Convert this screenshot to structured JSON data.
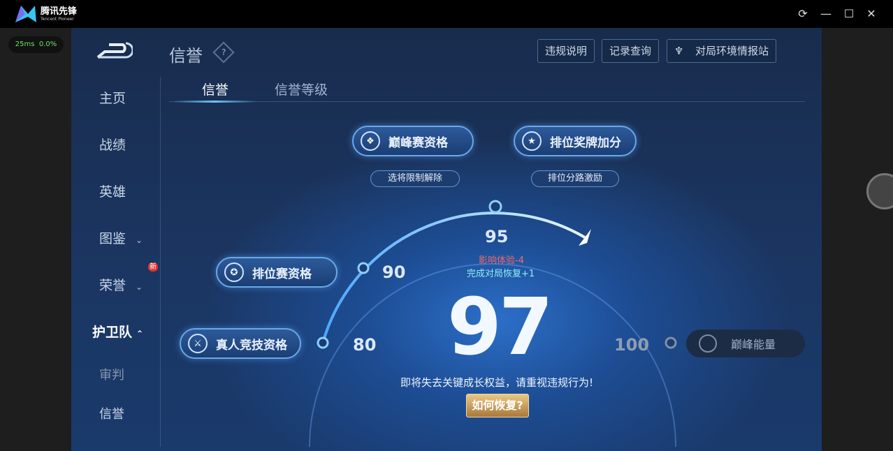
{
  "window": {
    "app_name": "腾讯先锋",
    "app_subtitle": "Tencent Pioneer",
    "controls": [
      "refresh-icon",
      "minimize-icon",
      "maximize-icon",
      "close-icon"
    ]
  },
  "ping": {
    "latency": "25ms",
    "loss": "0.0%"
  },
  "header": {
    "title": "信誉",
    "buttons": [
      "违规说明",
      "记录查询",
      "对局环境情报站"
    ]
  },
  "sidebar": {
    "items": [
      {
        "label": "主页"
      },
      {
        "label": "战绩"
      },
      {
        "label": "英雄"
      },
      {
        "label": "图鉴"
      },
      {
        "label": "荣誉",
        "badge": "新"
      },
      {
        "label": "护卫队",
        "active": true
      },
      {
        "label": "审判"
      },
      {
        "label": "信誉"
      }
    ]
  },
  "tabs": [
    {
      "label": "信誉",
      "active": true
    },
    {
      "label": "信誉等级"
    }
  ],
  "privileges": {
    "peak": {
      "label": "巅峰赛资格",
      "sub": "选将限制解除"
    },
    "rank_bonus": {
      "label": "排位奖牌加分",
      "sub": "排位分路激励"
    },
    "ranked": {
      "label": "排位赛资格"
    },
    "human": {
      "label": "真人竞技资格"
    },
    "energy": {
      "label": "巅峰能量"
    }
  },
  "gauge": {
    "marks": [
      "80",
      "90",
      "95",
      "100"
    ],
    "score": "97",
    "penalty": "影响体验-4",
    "recover": "完成对局恢复+1",
    "warning": "即将失去关键成长权益，请重视违规行为!",
    "how_button": "如何恢复?"
  },
  "colors": {
    "accent": "#6cc4ff",
    "penalty": "#f06a6a",
    "recover": "#8ff0f4",
    "gold": "#c9a05e"
  }
}
